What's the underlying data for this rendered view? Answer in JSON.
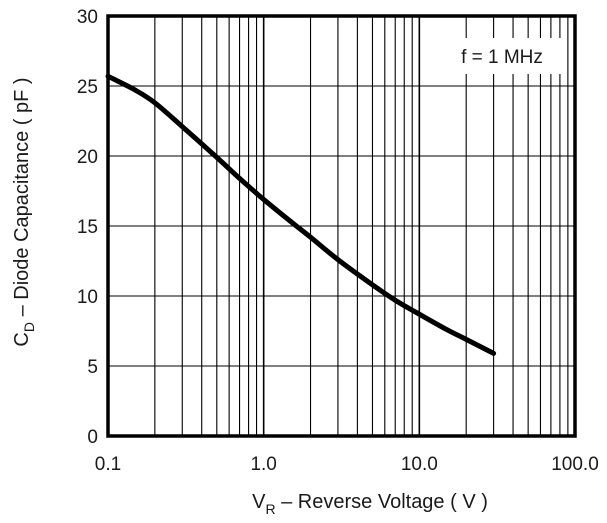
{
  "chart_data": {
    "type": "line",
    "title": "",
    "xscale": "log",
    "xlim": [
      0.1,
      100
    ],
    "ylim": [
      0,
      30
    ],
    "xticks": [
      "0.1",
      "1.0",
      "10.0",
      "100.0"
    ],
    "yticks": [
      "0",
      "5",
      "10",
      "15",
      "20",
      "25",
      "30"
    ],
    "ylabel": {
      "main": "C",
      "sub": "D",
      "rest": " – Diode Capacitance ( pF )"
    },
    "xlabel": {
      "main": "V",
      "sub": "R",
      "rest": " – Reverse Voltage ( V )"
    },
    "annotation": "f = 1 MHz",
    "grid": true,
    "series": [
      {
        "x": [
          0.1,
          0.15,
          0.2,
          0.3,
          0.5,
          0.7,
          1.0,
          1.5,
          2.0,
          3.0,
          5.0,
          7.0,
          10.0,
          15.0,
          20.0,
          30.0
        ],
        "y": [
          25.7,
          24.7,
          23.8,
          22.1,
          19.9,
          18.4,
          16.9,
          15.3,
          14.2,
          12.6,
          10.8,
          9.7,
          8.7,
          7.6,
          6.9,
          5.9
        ]
      }
    ],
    "colors": {
      "line": "#000000",
      "grid": "#000000",
      "text": "#1a1a1a"
    }
  }
}
